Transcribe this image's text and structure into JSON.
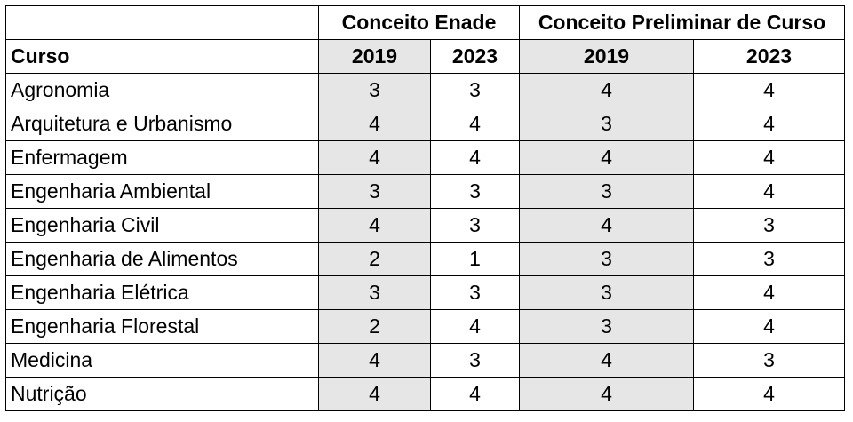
{
  "header": {
    "group_enade": "Conceito Enade",
    "group_cpc": "Conceito Preliminar de Curso",
    "course_label": "Curso",
    "years": [
      "2019",
      "2023",
      "2019",
      "2023"
    ]
  },
  "rows": [
    {
      "curso": "Agronomia",
      "enade_2019": "3",
      "enade_2023": "3",
      "cpc_2019": "4",
      "cpc_2023": "4"
    },
    {
      "curso": "Arquitetura e Urbanismo",
      "enade_2019": "4",
      "enade_2023": "4",
      "cpc_2019": "3",
      "cpc_2023": "4"
    },
    {
      "curso": "Enfermagem",
      "enade_2019": "4",
      "enade_2023": "4",
      "cpc_2019": "4",
      "cpc_2023": "4"
    },
    {
      "curso": "Engenharia Ambiental",
      "enade_2019": "3",
      "enade_2023": "3",
      "cpc_2019": "3",
      "cpc_2023": "4"
    },
    {
      "curso": "Engenharia Civil",
      "enade_2019": "4",
      "enade_2023": "3",
      "cpc_2019": "4",
      "cpc_2023": "3"
    },
    {
      "curso": "Engenharia de Alimentos",
      "enade_2019": "2",
      "enade_2023": "1",
      "cpc_2019": "3",
      "cpc_2023": "3"
    },
    {
      "curso": "Engenharia Elétrica",
      "enade_2019": "3",
      "enade_2023": "3",
      "cpc_2019": "3",
      "cpc_2023": "4"
    },
    {
      "curso": "Engenharia Florestal",
      "enade_2019": "2",
      "enade_2023": "4",
      "cpc_2019": "3",
      "cpc_2023": "4"
    },
    {
      "curso": "Medicina",
      "enade_2019": "4",
      "enade_2023": "3",
      "cpc_2019": "4",
      "cpc_2023": "3"
    },
    {
      "curso": "Nutrição",
      "enade_2019": "4",
      "enade_2023": "4",
      "cpc_2019": "4",
      "cpc_2023": "4"
    }
  ],
  "colors": {
    "shade": "#e6e6e6",
    "border": "#000000"
  }
}
